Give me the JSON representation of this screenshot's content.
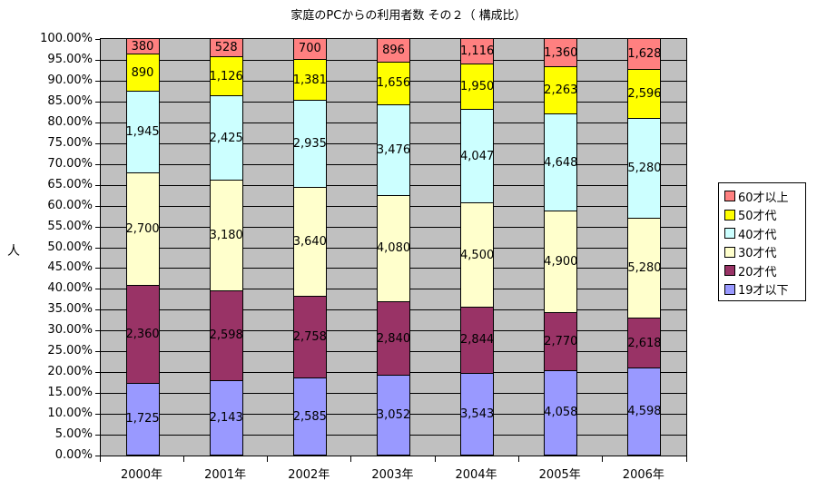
{
  "chart_data": {
    "type": "bar",
    "stacked": "percent",
    "title": "家庭のPCからの利用者数 その２（ 構成比）",
    "xlabel": "",
    "ylabel": "人",
    "ylim": [
      0,
      100
    ],
    "y_ticks": [
      "0.00%",
      "5.00%",
      "10.00%",
      "15.00%",
      "20.00%",
      "25.00%",
      "30.00%",
      "35.00%",
      "40.00%",
      "45.00%",
      "50.00%",
      "55.00%",
      "60.00%",
      "65.00%",
      "70.00%",
      "75.00%",
      "80.00%",
      "85.00%",
      "90.00%",
      "95.00%",
      "100.00%"
    ],
    "categories": [
      "2000年",
      "2001年",
      "2002年",
      "2003年",
      "2004年",
      "2005年",
      "2006年"
    ],
    "series": [
      {
        "name": "19才以下",
        "color": "#9999ff",
        "values": [
          1725,
          2143,
          2585,
          3052,
          3543,
          4058,
          4598
        ],
        "labels": [
          "1,725",
          "2,143",
          "2,585",
          "3,052",
          "3,543",
          "4,058",
          "4,598"
        ]
      },
      {
        "name": "20才代",
        "color": "#993366",
        "values": [
          2360,
          2598,
          2758,
          2840,
          2844,
          2770,
          2618
        ],
        "labels": [
          "2,360",
          "2,598",
          "2,758",
          "2,840",
          "2,844",
          "2,770",
          "2,618"
        ]
      },
      {
        "name": "30才代",
        "color": "#ffffcc",
        "values": [
          2700,
          3180,
          3640,
          4080,
          4500,
          4900,
          5280
        ],
        "labels": [
          "2,700",
          "3,180",
          "3,640",
          "4,080",
          "4,500",
          "4,900",
          "5,280"
        ]
      },
      {
        "name": "40才代",
        "color": "#ccffff",
        "values": [
          1945,
          2425,
          2935,
          3476,
          4047,
          4648,
          5280
        ],
        "labels": [
          "1,945",
          "2,425",
          "2,935",
          "3,476",
          "4,047",
          "4,648",
          "5,280"
        ]
      },
      {
        "name": "50才代",
        "color": "#ffff00",
        "values": [
          890,
          1126,
          1381,
          1656,
          1950,
          2263,
          2596
        ],
        "labels": [
          "890",
          "1,126",
          "1,381",
          "1,656",
          "1,950",
          "2,263",
          "2,596"
        ]
      },
      {
        "name": "60才以上",
        "color": "#ff8080",
        "values": [
          380,
          528,
          700,
          896,
          1116,
          1360,
          1628
        ],
        "labels": [
          "380",
          "528",
          "700",
          "896",
          "1,116",
          "1,360",
          "1,628"
        ]
      }
    ],
    "legend": {
      "position": "right",
      "entries": [
        "60才以上",
        "50才代",
        "40才代",
        "30才代",
        "20才代",
        "19才以下"
      ]
    },
    "grid": true,
    "plot_background": "#c0c0c0"
  }
}
